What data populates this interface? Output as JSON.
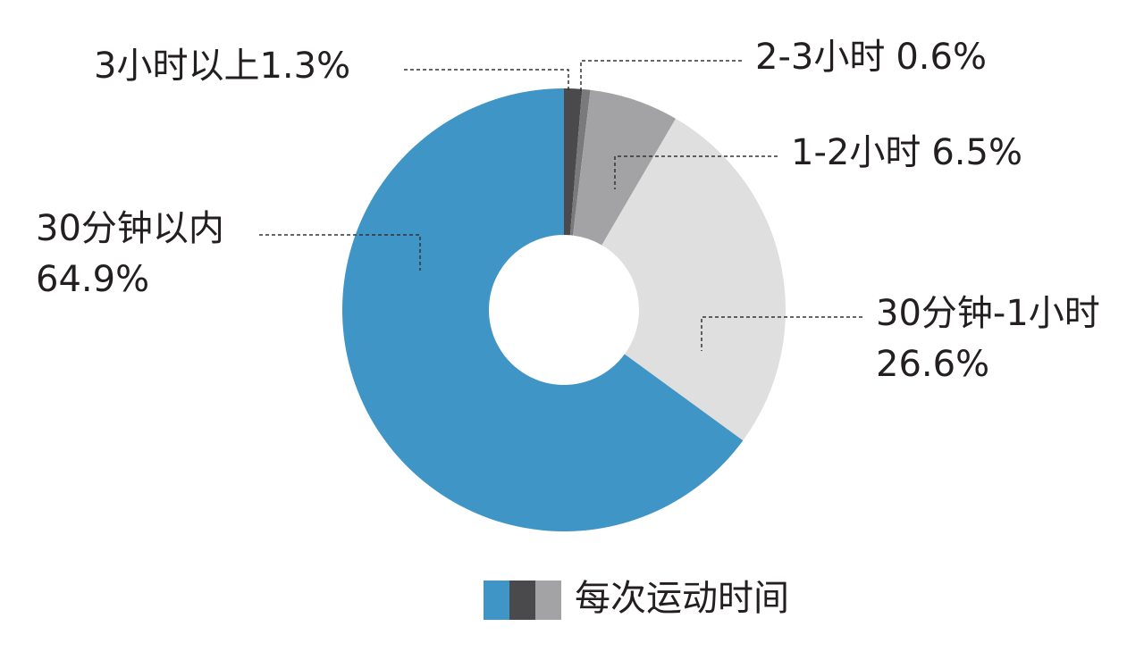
{
  "chart_data": {
    "type": "donut",
    "categories": [
      "3小时以上",
      "2-3小时",
      "1-2小时",
      "30分钟-1小时",
      "30分钟以内"
    ],
    "values": [
      1.3,
      0.6,
      6.5,
      26.6,
      64.9
    ],
    "value_labels": [
      "1.3%",
      "0.6%",
      "6.5%",
      "26.6%",
      "64.9%"
    ],
    "colors": [
      "#4a4a4c",
      "#7a7a7c",
      "#a3a3a5",
      "#e0dfe0",
      "#3f95c6"
    ],
    "legend_title": "每次运动时间"
  }
}
